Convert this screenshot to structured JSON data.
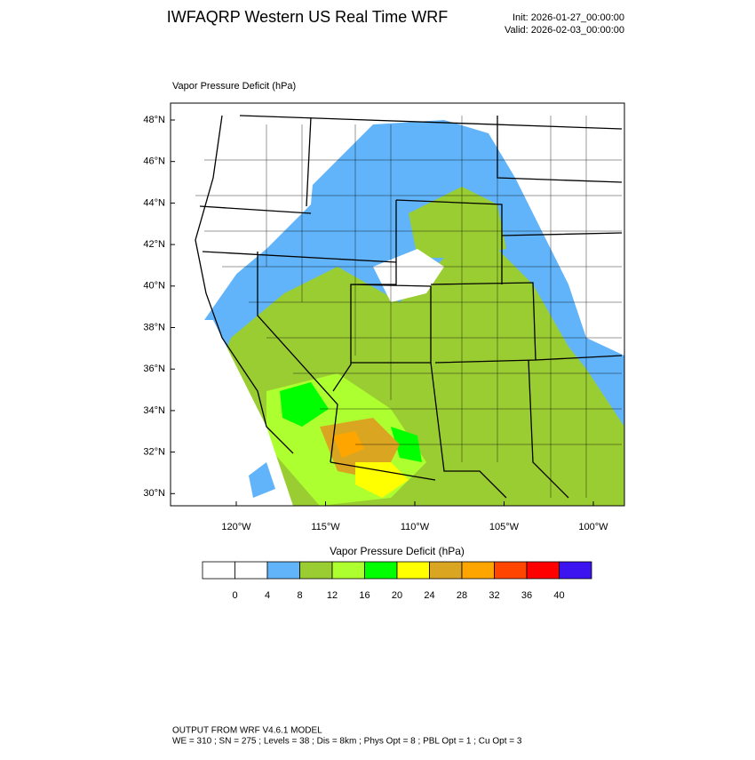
{
  "header": {
    "title": "IWFAQRP Western US Real Time WRF",
    "init": "Init: 2026-01-27_00:00:00",
    "valid": "Valid: 2026-02-03_00:00:00"
  },
  "map": {
    "field_label": "Vapor Pressure Deficit   (hPa)",
    "lat_labels": [
      "48°N",
      "46°N",
      "44°N",
      "42°N",
      "40°N",
      "38°N",
      "36°N",
      "34°N",
      "32°N",
      "30°N"
    ],
    "lon_labels": [
      "120°W",
      "115°W",
      "110°W",
      "105°W",
      "100°W"
    ]
  },
  "colorbar": {
    "title": "Vapor Pressure Deficit  (hPa)",
    "levels": [
      0,
      4,
      8,
      12,
      16,
      20,
      24,
      28,
      32,
      36,
      40
    ],
    "colors": [
      "#ffffff",
      "#ffffff",
      "#62b4fa",
      "#9acd32",
      "#adff2f",
      "#00ff00",
      "#ffff00",
      "#daa520",
      "#ffa500",
      "#ff4500",
      "#ff0000",
      "#3c14f0"
    ]
  },
  "footer": {
    "line1": "OUTPUT FROM WRF V4.6.1 MODEL",
    "line2": "WE = 310 ; SN = 275 ; Levels = 38 ; Dis = 8km ; Phys Opt = 8 ; PBL Opt = 1 ; Cu Opt = 3"
  }
}
